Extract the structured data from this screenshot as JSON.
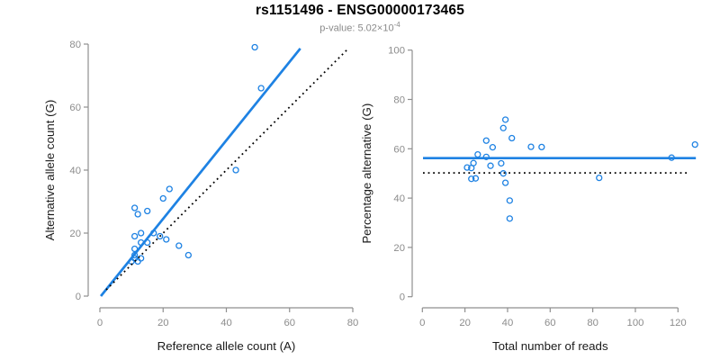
{
  "header": {
    "title": "rs1151496 - ENSG00000173465",
    "p_value_label": "p-value: 5.02×10",
    "p_value_exponent": "-4"
  },
  "colors": {
    "accent_blue": "#1E82E3",
    "black": "#000000",
    "axis": "#8F8F8F",
    "tick_labels": "#8C8C8C",
    "axis_titles": "#1A1A1A",
    "subtitle": "#8A8A8A",
    "background": "#FFFFFF"
  },
  "chart_data": [
    {
      "type": "scatter",
      "panel": "left",
      "xlabel": "Reference allele count (A)",
      "ylabel": "Alternative allele count (G)",
      "xlim": [
        0,
        80
      ],
      "ylim": [
        0,
        80
      ],
      "xticks": [
        0,
        20,
        40,
        60,
        80
      ],
      "yticks": [
        0,
        20,
        40,
        60,
        80
      ],
      "grid": false,
      "legend": false,
      "points_xy": [
        [
          11,
          28
        ],
        [
          12,
          26
        ],
        [
          15,
          27
        ],
        [
          13,
          20
        ],
        [
          11,
          19
        ],
        [
          20,
          31
        ],
        [
          22,
          34
        ],
        [
          49,
          79
        ],
        [
          51,
          66
        ],
        [
          43,
          40
        ],
        [
          11,
          15
        ],
        [
          13,
          17
        ],
        [
          15,
          17
        ],
        [
          17,
          20
        ],
        [
          19,
          19
        ],
        [
          21,
          18
        ],
        [
          25,
          16
        ],
        [
          28,
          13
        ],
        [
          11,
          13
        ],
        [
          10,
          11
        ],
        [
          11,
          12
        ],
        [
          12,
          11
        ],
        [
          13,
          12
        ]
      ],
      "lines": [
        {
          "name": "regression-line",
          "style": "solid",
          "color_key": "accent_blue",
          "x1": 0.3,
          "y1": 0,
          "x2": 63.4,
          "y2": 78.6
        },
        {
          "name": "identity-line",
          "style": "dotted",
          "color_key": "black",
          "x1": 2,
          "y1": 2,
          "x2": 78.3,
          "y2": 78.3
        }
      ]
    },
    {
      "type": "scatter",
      "panel": "right",
      "xlabel": "Total number of reads",
      "ylabel": "Percentage alternative (G)",
      "xlim": [
        0,
        128
      ],
      "ylim": [
        0,
        100
      ],
      "xticks": [
        0,
        20,
        40,
        60,
        80,
        100,
        120
      ],
      "yticks": [
        0,
        20,
        40,
        60,
        80,
        100
      ],
      "grid": false,
      "legend": false,
      "points_xy": [
        [
          39,
          71.8
        ],
        [
          38,
          68.4
        ],
        [
          42,
          64.3
        ],
        [
          33,
          60.6
        ],
        [
          30,
          63.3
        ],
        [
          51,
          60.8
        ],
        [
          56,
          60.7
        ],
        [
          128,
          61.7
        ],
        [
          117,
          56.4
        ],
        [
          83,
          48.2
        ],
        [
          26,
          57.7
        ],
        [
          30,
          56.7
        ],
        [
          32,
          53.1
        ],
        [
          37,
          54.1
        ],
        [
          38,
          50
        ],
        [
          39,
          46.2
        ],
        [
          41,
          39
        ],
        [
          41,
          31.7
        ],
        [
          24,
          54.2
        ],
        [
          21,
          52.4
        ],
        [
          23,
          52.2
        ],
        [
          23,
          47.8
        ],
        [
          25,
          48
        ]
      ],
      "lines": [
        {
          "name": "mean-line",
          "style": "solid",
          "color_key": "accent_blue",
          "x1": 0.3,
          "y1": 56.2,
          "x2": 128.4,
          "y2": 56.2
        },
        {
          "name": "null-line",
          "style": "dotted",
          "color_key": "black",
          "x1": 0.3,
          "y1": 50.2,
          "x2": 125.6,
          "y2": 50.2
        }
      ]
    }
  ]
}
